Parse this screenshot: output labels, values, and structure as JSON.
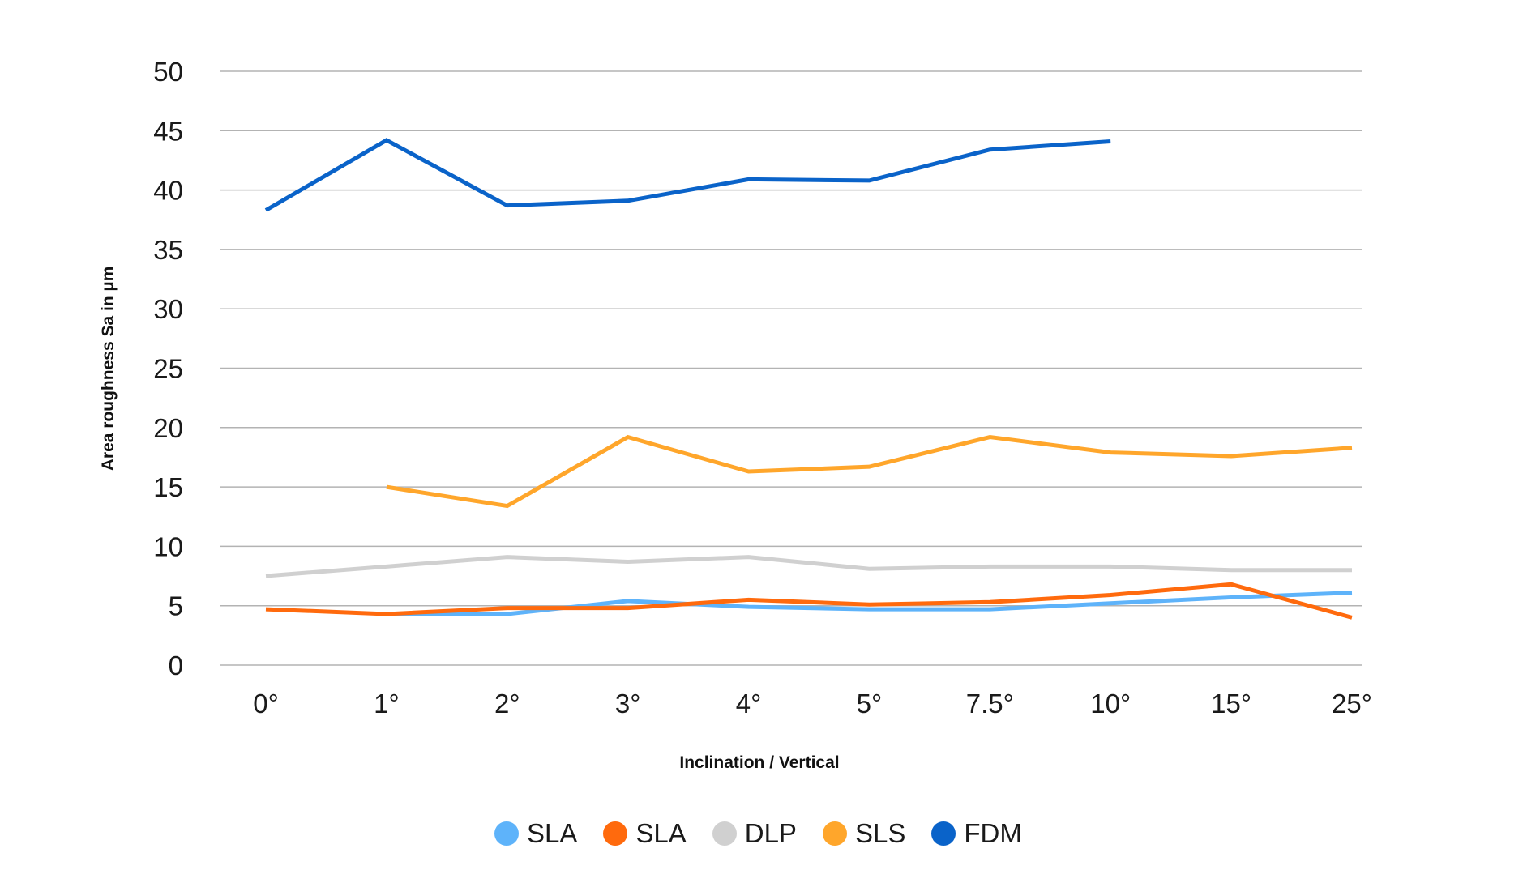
{
  "chart_data": {
    "type": "line",
    "title": "",
    "xlabel": "Inclination / Vertical",
    "ylabel": "Area roughness Sa in µm",
    "ylim": [
      0,
      50
    ],
    "yticks": [
      "0",
      "5",
      "10",
      "15",
      "20",
      "25",
      "30",
      "35",
      "40",
      "45",
      "50"
    ],
    "grid": true,
    "legend_position": "bottom",
    "categories": [
      "0°",
      "1°",
      "2°",
      "3°",
      "4°",
      "5°",
      "7.5°",
      "10°",
      "15°",
      "25°"
    ],
    "series": [
      {
        "name": "SLA",
        "color": "#5EB3FA",
        "values": [
          null,
          4.3,
          4.3,
          5.4,
          4.9,
          4.7,
          4.7,
          5.2,
          5.7,
          6.1
        ]
      },
      {
        "name": "SLA",
        "color": "#FF6A0D",
        "values": [
          4.7,
          4.3,
          4.8,
          4.8,
          5.5,
          5.1,
          5.3,
          5.9,
          6.8,
          4.0
        ]
      },
      {
        "name": "DLP",
        "color": "#D0D0D0",
        "values": [
          7.5,
          8.3,
          9.1,
          8.7,
          9.1,
          8.1,
          8.3,
          8.3,
          8.0,
          8.0
        ]
      },
      {
        "name": "SLS",
        "color": "#FFA62B",
        "values": [
          null,
          15.0,
          13.4,
          19.2,
          16.3,
          16.7,
          19.2,
          17.9,
          17.6,
          18.3
        ]
      },
      {
        "name": "FDM",
        "color": "#0A63C9",
        "values": [
          38.3,
          44.2,
          38.7,
          39.1,
          40.9,
          40.8,
          43.4,
          44.1,
          null,
          null
        ]
      }
    ]
  }
}
